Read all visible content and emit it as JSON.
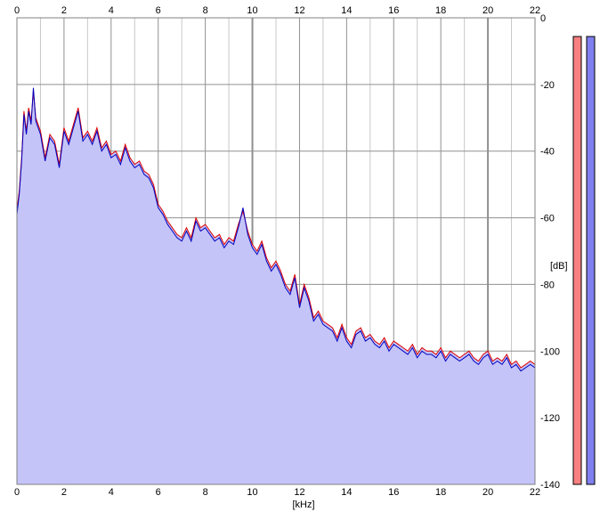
{
  "chart_data": {
    "type": "area",
    "xlabel": "[kHz]",
    "ylabel": "[dB]",
    "xlim": [
      0,
      22
    ],
    "ylim": [
      -140,
      0
    ],
    "x_ticks": [
      0,
      2,
      4,
      6,
      8,
      10,
      12,
      14,
      16,
      18,
      20,
      22
    ],
    "x_tick_labels": [
      "0",
      "2",
      "4",
      "6",
      "8",
      "10",
      "12",
      "14",
      "16",
      "18",
      "20",
      "22"
    ],
    "y_ticks": [
      0,
      -20,
      -40,
      -60,
      -80,
      -100,
      -120,
      -140
    ],
    "y_tick_labels": [
      "0",
      "-20",
      "-40",
      "-60",
      "-80",
      "-100",
      "-120",
      "-140"
    ],
    "grid": true,
    "colors": {
      "fill": "#c4c4f8",
      "channel_left": "#dd0000",
      "channel_right": "#0000c0",
      "grid_major": "#909090",
      "grid_minor": "#c8c8c8",
      "meter_left": "#f88080",
      "meter_right": "#8080f0"
    },
    "x": [
      0.0,
      0.1,
      0.2,
      0.3,
      0.4,
      0.5,
      0.6,
      0.7,
      0.8,
      1.0,
      1.2,
      1.4,
      1.6,
      1.8,
      2.0,
      2.2,
      2.4,
      2.6,
      2.8,
      3.0,
      3.2,
      3.4,
      3.6,
      3.8,
      4.0,
      4.2,
      4.4,
      4.6,
      4.8,
      5.0,
      5.2,
      5.4,
      5.6,
      5.8,
      6.0,
      6.2,
      6.4,
      6.6,
      6.8,
      7.0,
      7.2,
      7.4,
      7.6,
      7.8,
      8.0,
      8.2,
      8.4,
      8.6,
      8.8,
      9.0,
      9.2,
      9.4,
      9.6,
      9.8,
      10.0,
      10.2,
      10.4,
      10.6,
      10.8,
      11.0,
      11.2,
      11.4,
      11.6,
      11.8,
      12.0,
      12.2,
      12.4,
      12.6,
      12.8,
      13.0,
      13.2,
      13.4,
      13.6,
      13.8,
      14.0,
      14.2,
      14.4,
      14.6,
      14.8,
      15.0,
      15.2,
      15.4,
      15.6,
      15.8,
      16.0,
      16.2,
      16.4,
      16.6,
      16.8,
      17.0,
      17.2,
      17.4,
      17.6,
      17.8,
      18.0,
      18.2,
      18.4,
      18.6,
      18.8,
      19.0,
      19.2,
      19.4,
      19.6,
      19.8,
      20.0,
      20.2,
      20.4,
      20.6,
      20.8,
      21.0,
      21.2,
      21.4,
      21.6,
      21.8,
      22.0
    ],
    "series": [
      {
        "values": [
          -58,
          -52,
          -42,
          -28,
          -34,
          -27,
          -31,
          -22,
          -30,
          -34,
          -42,
          -35,
          -37,
          -44,
          -33,
          -37,
          -32,
          -27,
          -36,
          -34,
          -37,
          -33,
          -39,
          -37,
          -41,
          -40,
          -43,
          -38,
          -42,
          -44,
          -43,
          -46,
          -47,
          -50,
          -56,
          -58,
          -61,
          -63,
          -65,
          -66,
          -63,
          -66,
          -60,
          -63,
          -62,
          -64,
          -66,
          -65,
          -68,
          -66,
          -67,
          -62,
          -58,
          -64,
          -68,
          -70,
          -67,
          -72,
          -75,
          -73,
          -76,
          -80,
          -82,
          -77,
          -86,
          -80,
          -84,
          -90,
          -88,
          -91,
          -92,
          -93,
          -96,
          -92,
          -96,
          -98,
          -94,
          -93,
          -96,
          -95,
          -97,
          -98,
          -96,
          -99,
          -97,
          -98,
          -99,
          -100,
          -98,
          -101,
          -99,
          -100,
          -100,
          -101,
          -99,
          -102,
          -100,
          -101,
          -102,
          -101,
          -100,
          -102,
          -103,
          -101,
          -100,
          -103,
          -102,
          -103,
          -101,
          -104,
          -103,
          -105,
          -104,
          -103,
          -104
        ]
      },
      {
        "values": [
          -59,
          -53,
          -43,
          -29,
          -35,
          -28,
          -32,
          -21,
          -31,
          -35,
          -43,
          -36,
          -38,
          -45,
          -34,
          -38,
          -33,
          -28,
          -37,
          -35,
          -38,
          -34,
          -40,
          -38,
          -42,
          -41,
          -44,
          -39,
          -43,
          -45,
          -44,
          -47,
          -48,
          -51,
          -57,
          -59,
          -62,
          -64,
          -66,
          -67,
          -64,
          -67,
          -61,
          -64,
          -63,
          -65,
          -67,
          -66,
          -69,
          -67,
          -68,
          -63,
          -57,
          -65,
          -69,
          -71,
          -68,
          -73,
          -76,
          -74,
          -77,
          -81,
          -83,
          -78,
          -87,
          -81,
          -85,
          -91,
          -89,
          -92,
          -93,
          -94,
          -97,
          -93,
          -97,
          -99,
          -95,
          -94,
          -97,
          -96,
          -98,
          -99,
          -97,
          -100,
          -98,
          -99,
          -100,
          -101,
          -99,
          -102,
          -100,
          -101,
          -101,
          -102,
          -100,
          -103,
          -101,
          -102,
          -103,
          -102,
          -101,
          -103,
          -104,
          -102,
          -101,
          -104,
          -103,
          -104,
          -102,
          -105,
          -104,
          -106,
          -105,
          -104,
          -105
        ]
      }
    ]
  }
}
